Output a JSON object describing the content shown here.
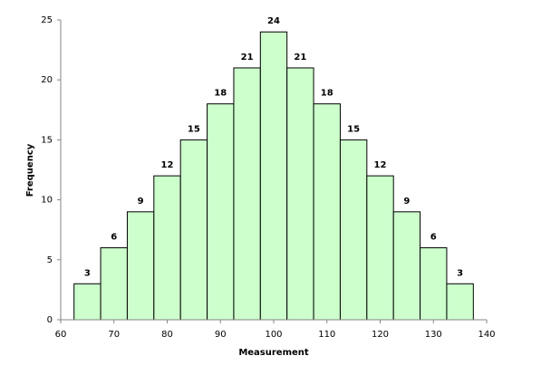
{
  "chart_data": {
    "type": "histogram",
    "bins": [
      62.5,
      67.5,
      72.5,
      77.5,
      82.5,
      87.5,
      92.5,
      97.5,
      102.5,
      107.5,
      112.5,
      117.5,
      122.5,
      127.5,
      132.5,
      137.5
    ],
    "values": [
      3,
      6,
      9,
      12,
      15,
      18,
      21,
      24,
      21,
      18,
      15,
      12,
      9,
      6,
      3
    ],
    "color": "#ccffcc",
    "edgecolor": "#000000",
    "xlabel": "Measurement",
    "ylabel": "Frequency",
    "xlim": [
      60,
      140
    ],
    "xticks": [
      60,
      70,
      80,
      90,
      100,
      110,
      120,
      130,
      140
    ],
    "ylim": [
      0,
      25
    ],
    "yticks": [
      0,
      5,
      10,
      15,
      20,
      25
    ],
    "grid": false
  }
}
